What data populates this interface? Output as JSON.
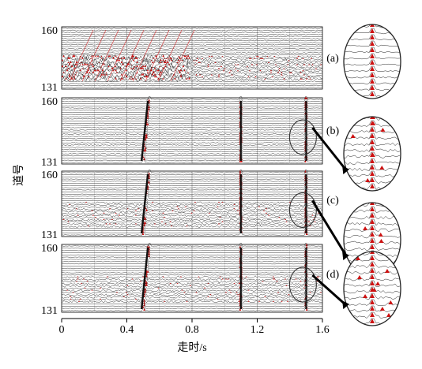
{
  "chart_data": {
    "type": "seismic_wiggle",
    "xlabel": "走时/s",
    "ylabel": "道号",
    "x_ticks": [
      "0",
      "0.4",
      "0.8",
      "1.2",
      "1.6"
    ],
    "x_tick_values": [
      0,
      0.4,
      0.8,
      1.2,
      1.6
    ],
    "xlim": [
      0,
      1.6
    ],
    "channel_range": [
      131,
      160
    ],
    "panels": [
      {
        "label": "(a)",
        "y_top_label": "160",
        "y_bottom_label": "131",
        "events": []
      },
      {
        "label": "(b)",
        "y_top_label": "160",
        "y_bottom_label": "131",
        "events": [
          0.5,
          1.1,
          1.5
        ]
      },
      {
        "label": "(c)",
        "y_top_label": "160",
        "y_bottom_label": "131",
        "events": [
          0.5,
          1.1,
          1.5
        ]
      },
      {
        "label": "(d)",
        "y_top_label": "160",
        "y_bottom_label": "131",
        "events": [
          0.5,
          1.1,
          1.5
        ]
      }
    ],
    "zoom_time": 1.5,
    "colors": {
      "trace": "#222222",
      "fill": "#cc1111",
      "grid": "#888888"
    }
  }
}
